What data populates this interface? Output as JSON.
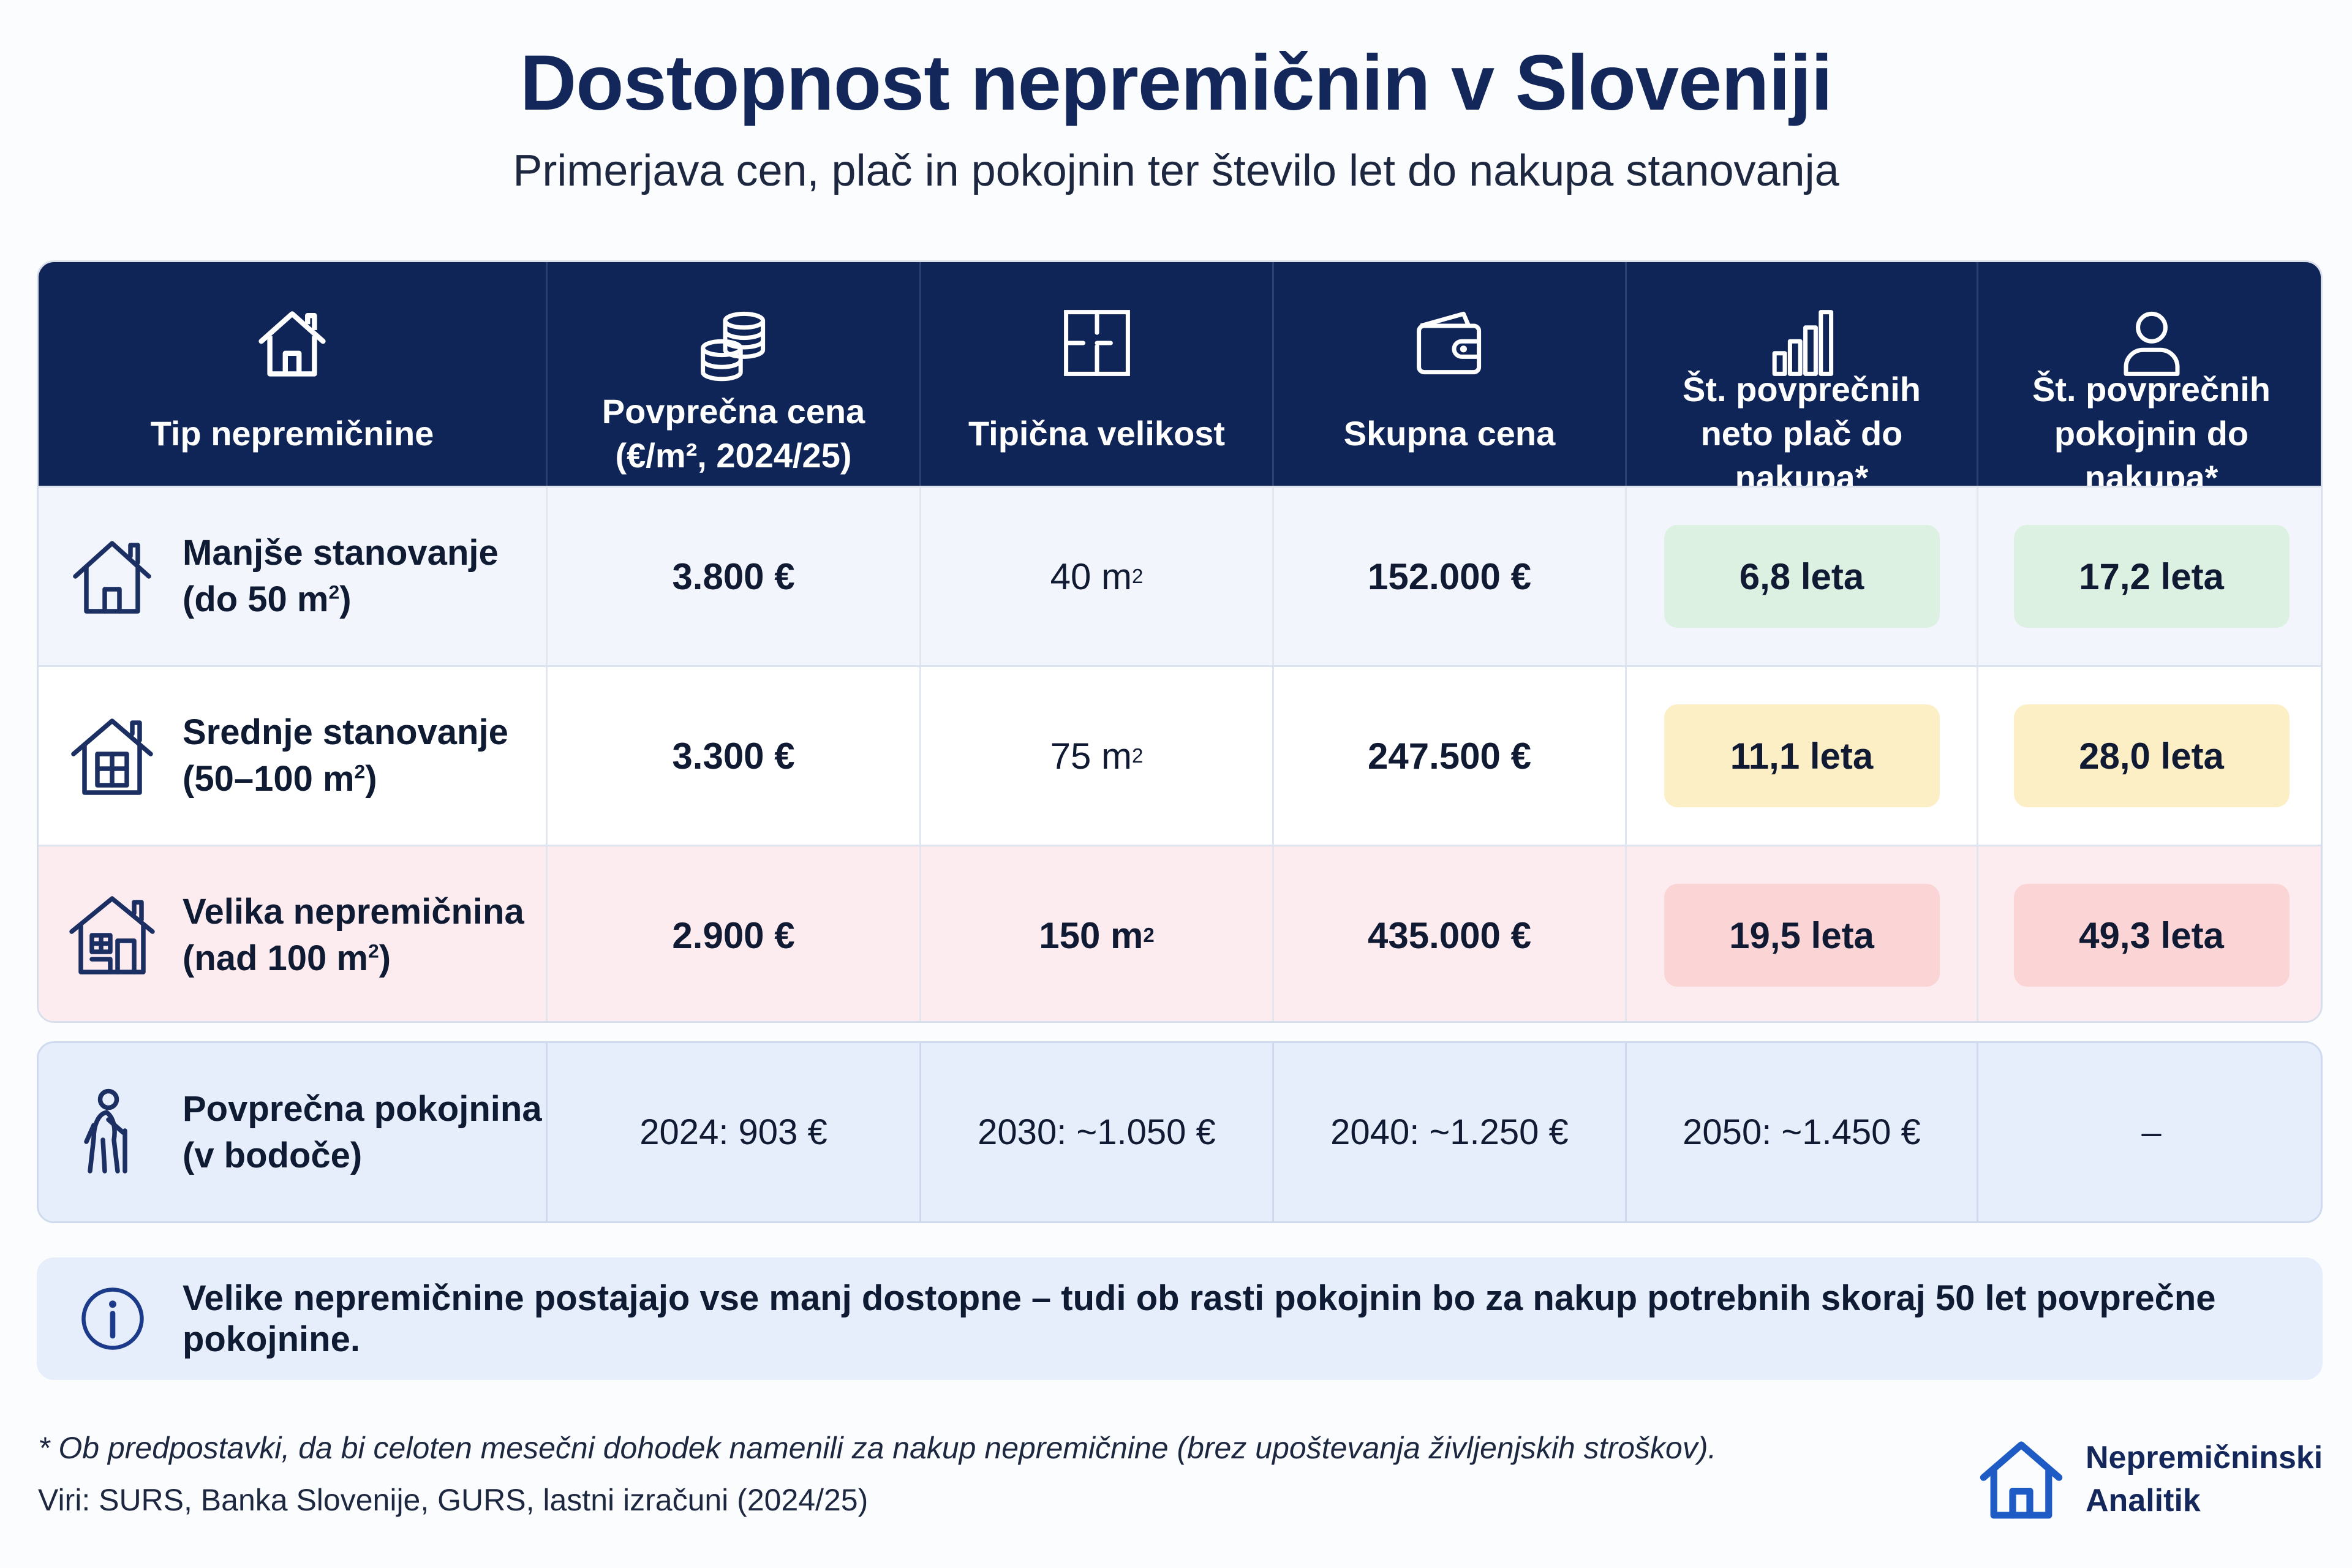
{
  "header": {
    "title": "Dostopnost nepremičnin v Sloveniji",
    "subtitle": "Primerjava cen, plač in pokojnin ter število let do nakupa stanovanja"
  },
  "columns": [
    {
      "icon": "house-icon",
      "label_line1": "Tip nepremičnine",
      "label_line2": ""
    },
    {
      "icon": "coins-icon",
      "label_line1": "Povprečna cena",
      "label_line2": "(€/m², 2024/25)"
    },
    {
      "icon": "floor-plan-icon",
      "label_line1": "Tipična velikost",
      "label_line2": ""
    },
    {
      "icon": "wallet-icon",
      "label_line1": "Skupna cena",
      "label_line2": ""
    },
    {
      "icon": "bar-chart-icon",
      "label_line1": "Št. povprečnih",
      "label_line2": "neto plač do nakupa*"
    },
    {
      "icon": "person-icon",
      "label_line1": "Št. povprečnih",
      "label_line2": "pokojnin do nakupa*"
    }
  ],
  "rows": [
    {
      "icon": "small-house-icon",
      "type_line1": "Manjše stanovanje",
      "type_line2_prefix": "(do 50 m",
      "type_line2_sup": "2",
      "type_line2_suffix": ")",
      "price_per_m2": "3.800 €",
      "size_value": "40 m",
      "size_sup": "2",
      "total_price": "152.000 €",
      "salaries_years": "6,8 leta",
      "pensions_years": "17,2 leta",
      "status_color": "#dcf1e2"
    },
    {
      "icon": "medium-house-icon",
      "type_line1": "Srednje stanovanje",
      "type_line2_prefix": "(50–100 m",
      "type_line2_sup": "2",
      "type_line2_suffix": ")",
      "price_per_m2": "3.300 €",
      "size_value": "75 m",
      "size_sup": "2",
      "total_price": "247.500 €",
      "salaries_years": "11,1 leta",
      "pensions_years": "28,0 leta",
      "status_color": "#fcefc6"
    },
    {
      "icon": "large-house-icon",
      "type_line1": "Velika nepremičnina",
      "type_line2_prefix": "(nad 100 m",
      "type_line2_sup": "2",
      "type_line2_suffix": ")",
      "price_per_m2": "2.900 €",
      "size_value": "150 m",
      "size_sup": "2",
      "total_price": "435.000 €",
      "salaries_years": "19,5 leta",
      "pensions_years": "49,3 leta",
      "status_color": "#fbd4d6"
    }
  ],
  "pension": {
    "icon": "elderly-person-icon",
    "label_line1": "Povprečna pokojnina",
    "label_line2": "(v bodoče)",
    "values": [
      "2024: 903 €",
      "2030: ~1.050 €",
      "2040: ~1.250 €",
      "2050: ~1.450 €",
      "–"
    ]
  },
  "info": {
    "icon": "info-icon",
    "text": "Velike nepremičnine postajajo vse manj dostopne – tudi ob rasti pokojnin bo za nakup potrebnih skoraj 50 let povprečne pokojnine."
  },
  "footer": {
    "footnote": "* Ob predpostavki, da bi celoten mesečni dohodek namenili za nakup nepremičnine (brez upoštevanja življenjskih stroškov).",
    "sources": "Viri: SURS, Banka Slovenije, GURS, lastni izračuni (2024/25)"
  },
  "brand": {
    "icon": "brand-house-icon",
    "name_line1": "Nepremičninski",
    "name_line2": "Analitik"
  },
  "colors": {
    "header_bg": "#0f2557",
    "title": "#13275a",
    "green": "#dcf1e2",
    "yellow": "#fcefc6",
    "red": "#fbd4d6",
    "pension_bg": "#e6eefb"
  }
}
